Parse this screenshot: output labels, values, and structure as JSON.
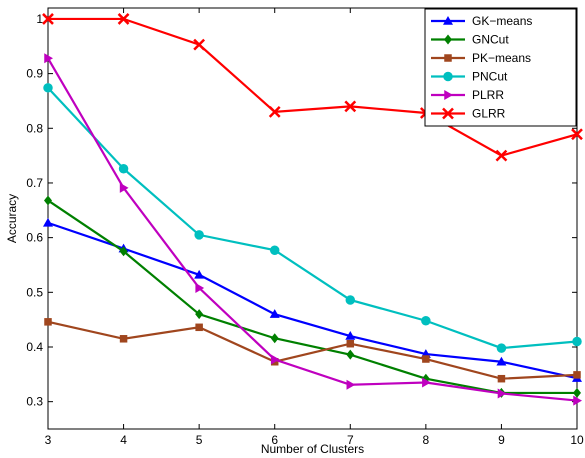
{
  "chart_data": {
    "type": "line",
    "title": "",
    "xlabel": "Number of Clusters",
    "ylabel": "Accuracy",
    "x": [
      3,
      4,
      5,
      6,
      7,
      8,
      9,
      10
    ],
    "xlim": [
      3,
      10
    ],
    "ylim": [
      0.25,
      1.02
    ],
    "xticks": [
      "3",
      "4",
      "5",
      "6",
      "7",
      "8",
      "9",
      "10"
    ],
    "yticks": [
      {
        "value": 0.3,
        "label": "0.3"
      },
      {
        "value": 0.4,
        "label": "0.4"
      },
      {
        "value": 0.5,
        "label": "0.5"
      },
      {
        "value": 0.6,
        "label": "0.6"
      },
      {
        "value": 0.7,
        "label": "0.7"
      },
      {
        "value": 0.8,
        "label": "0.8"
      },
      {
        "value": 0.9,
        "label": "0.9"
      },
      {
        "value": 1.0,
        "label": "1"
      }
    ],
    "grid": false,
    "legend_position": "top-right",
    "series": [
      {
        "name": "GK−means",
        "color": "#0000ff",
        "marker": "triangle-up",
        "values": [
          0.627,
          0.58,
          0.532,
          0.46,
          0.42,
          0.387,
          0.373,
          0.343
        ]
      },
      {
        "name": "GNCut",
        "color": "#008000",
        "marker": "diamond",
        "values": [
          0.668,
          0.575,
          0.46,
          0.416,
          0.386,
          0.342,
          0.316,
          0.316
        ]
      },
      {
        "name": "PK−means",
        "color": "#a0461e",
        "marker": "square",
        "values": [
          0.446,
          0.415,
          0.436,
          0.373,
          0.406,
          0.378,
          0.342,
          0.349
        ]
      },
      {
        "name": "PNCut",
        "color": "#00bfbf",
        "marker": "circle",
        "values": [
          0.874,
          0.726,
          0.605,
          0.577,
          0.486,
          0.448,
          0.398,
          0.41
        ]
      },
      {
        "name": "PLRR",
        "color": "#bf00bf",
        "marker": "triangle-right",
        "values": [
          0.928,
          0.691,
          0.508,
          0.377,
          0.331,
          0.335,
          0.315,
          0.302
        ]
      },
      {
        "name": "GLRR",
        "color": "#ff0000",
        "marker": "x",
        "values": [
          1.0,
          1.0,
          0.953,
          0.83,
          0.84,
          0.828,
          0.75,
          0.789
        ]
      }
    ]
  }
}
